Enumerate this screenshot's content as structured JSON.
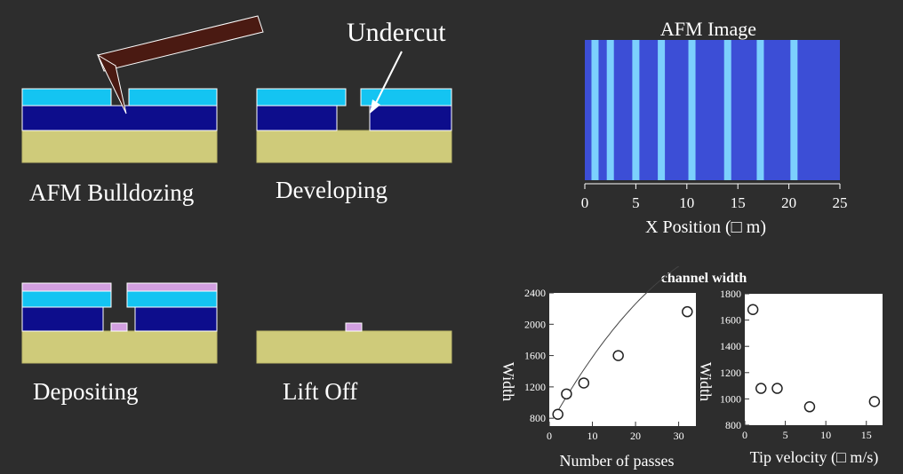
{
  "process": {
    "callout": "Undercut",
    "steps": [
      {
        "label": "AFM Bulldozing"
      },
      {
        "label": "Developing"
      },
      {
        "label": "Depositing"
      },
      {
        "label": "Lift Off"
      }
    ]
  },
  "colors": {
    "background": "#2d2d2d",
    "resist": "#14c4f2",
    "oxide": "#0d0d8c",
    "substrate": "#cfcb7a",
    "metal": "#d29fe0",
    "tip": "#4a1a12",
    "afm_stripe": "#7fd7ff",
    "afm_bg": "#3c4ed6"
  },
  "chart_data": [
    {
      "type": "heatmap",
      "title": "AFM Image",
      "xlabel": "X Position (□ m)",
      "xlim": [
        0,
        25
      ],
      "xticks": [
        "0",
        "5",
        "10",
        "15",
        "20",
        "25"
      ],
      "stripe_positions": [
        1,
        2.5,
        5,
        7.5,
        10.5,
        14,
        17.2,
        20.5
      ]
    },
    {
      "type": "scatter",
      "title": "channel width",
      "xlabel": "Number of passes",
      "ylabel": "Width",
      "xlim": [
        0,
        34
      ],
      "ylim": [
        700,
        2400
      ],
      "xticks": [
        "0",
        "10",
        "20",
        "30"
      ],
      "yticks": [
        "800",
        "1200",
        "1600",
        "2000",
        "2400"
      ],
      "x": [
        2,
        4,
        8,
        16,
        32
      ],
      "y": [
        850,
        1110,
        1250,
        1600,
        2160
      ],
      "fit_curve": true
    },
    {
      "type": "scatter",
      "xlabel": "Tip velocity (□ m/s)",
      "ylabel": "Width",
      "xlim": [
        0,
        17
      ],
      "ylim": [
        800,
        1800
      ],
      "xticks": [
        "0",
        "5",
        "10",
        "15"
      ],
      "yticks": [
        "800",
        "1000",
        "1200",
        "1400",
        "1600",
        "1800"
      ],
      "x": [
        1,
        2,
        4,
        8,
        16
      ],
      "y": [
        1680,
        1080,
        1080,
        940,
        980
      ]
    }
  ]
}
